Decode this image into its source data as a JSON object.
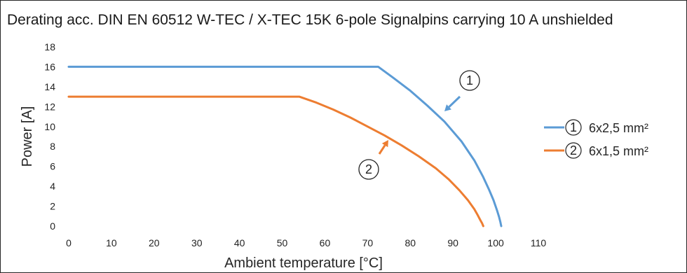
{
  "chart_data": {
    "type": "line",
    "title": "Derating acc. DIN EN 60512 W-TEC / X-TEC 15K 6-pole Signalpins carrying 10 A unshielded",
    "xlabel": "Ambient temperature   [°C]",
    "ylabel": "Power   [A]",
    "xlim": [
      0,
      110
    ],
    "ylim": [
      0,
      18
    ],
    "x_ticks": [
      "0",
      "10",
      "20",
      "30",
      "40",
      "50",
      "60",
      "70",
      "80",
      "90",
      "100",
      "110"
    ],
    "y_ticks": [
      "0",
      "2",
      "4",
      "6",
      "8",
      "10",
      "12",
      "14",
      "16",
      "18"
    ],
    "grid": false,
    "legend_position": "right",
    "series": [
      {
        "marker": "1",
        "name": "6x2,5 mm²",
        "color": "#5b9bd5",
        "x": [
          0,
          72.5,
          76,
          80,
          84,
          88,
          92,
          95,
          97,
          98.5,
          99.5,
          100.3,
          100.8,
          101.1,
          101.3
        ],
        "y": [
          16,
          16,
          14.9,
          13.6,
          12.1,
          10.5,
          8.5,
          6.6,
          5.0,
          3.6,
          2.6,
          1.6,
          0.9,
          0.4,
          0
        ]
      },
      {
        "marker": "2",
        "name": "6x1,5 mm²",
        "color": "#ed7d31",
        "x": [
          0,
          54,
          58,
          62,
          66,
          70,
          74,
          78,
          82,
          86,
          89,
          91.5,
          93.5,
          95,
          95.8,
          96.4,
          96.8,
          97.1
        ],
        "y": [
          13,
          13,
          12.4,
          11.7,
          10.9,
          10.0,
          9.1,
          8.1,
          7.0,
          5.8,
          4.7,
          3.6,
          2.6,
          1.7,
          1.1,
          0.6,
          0.3,
          0
        ]
      }
    ],
    "annotations": [
      {
        "text": "1",
        "target_series": "1"
      },
      {
        "text": "2",
        "target_series": "2"
      }
    ]
  }
}
